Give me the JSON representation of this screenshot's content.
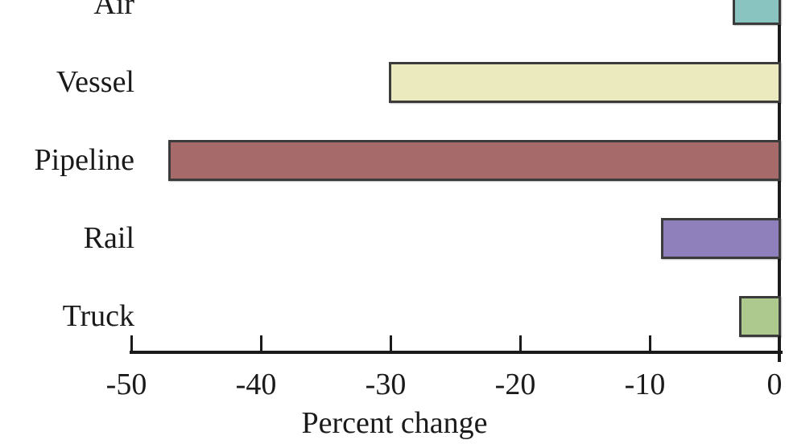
{
  "chart_data": {
    "type": "bar",
    "orientation": "horizontal",
    "title": "",
    "xlabel": "Percent change",
    "ylabel": "",
    "categories": [
      "Air",
      "Vessel",
      "Pipeline",
      "Rail",
      "Truck"
    ],
    "values": [
      -3.5,
      -30,
      -47,
      -9,
      -3
    ],
    "colors": [
      "#8ac4c1",
      "#eaeabe",
      "#a66a6a",
      "#8f7fba",
      "#adc98e"
    ],
    "bar_border_color": "#3b3b3b",
    "x_ticks": [
      -50,
      -40,
      -30,
      -20,
      -10,
      0
    ],
    "x_tick_labels": [
      "-50",
      "-40",
      "-30",
      "-20",
      "-10",
      "0"
    ],
    "xlim": [
      -50,
      0
    ],
    "grid": false,
    "legend_position": "none",
    "axis_color": "#1a1a1a",
    "background_color": "#ffffff"
  }
}
